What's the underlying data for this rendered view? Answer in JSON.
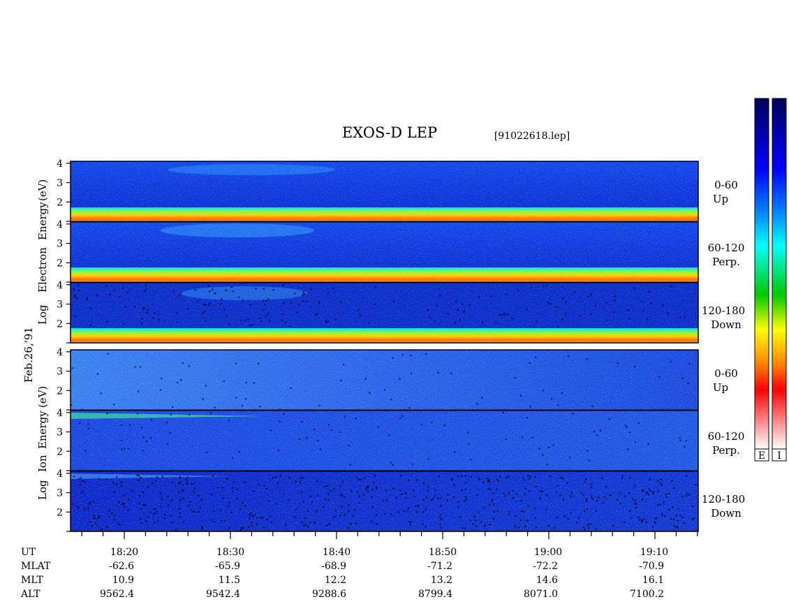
{
  "header": {
    "title": "EXOS-D LEP",
    "file": "[91022618.lep]"
  },
  "chart_data": {
    "type": "heatmap",
    "date_label": "Feb.26,'91",
    "x_tick_labels": [
      "18:20",
      "18:30",
      "18:40",
      "18:50",
      "19:00",
      "19:10"
    ],
    "groups": [
      {
        "name": "electron",
        "ylabel_lines": [
          "Log",
          "Electron",
          "Energy",
          "(eV)"
        ],
        "ylim": [
          1,
          4.1
        ],
        "ytick_labels": [
          "4",
          "3",
          "2"
        ],
        "panels": [
          {
            "pitch": "0-60",
            "direction": "Up"
          },
          {
            "pitch": "60-120",
            "direction": "Perp."
          },
          {
            "pitch": "120-180",
            "direction": "Down"
          }
        ]
      },
      {
        "name": "ion",
        "ylabel_lines": [
          "Log",
          "Ion",
          "Energy",
          "(eV)"
        ],
        "ylim": [
          1,
          4.1
        ],
        "ytick_labels": [
          "4",
          "3",
          "2"
        ],
        "panels": [
          {
            "pitch": "0-60",
            "direction": "Up"
          },
          {
            "pitch": "60-120",
            "direction": "Perp."
          },
          {
            "pitch": "120-180",
            "direction": "Down"
          }
        ]
      }
    ],
    "ephemeris": [
      {
        "label": "UT",
        "values": [
          "18:20",
          "18:30",
          "18:40",
          "18:50",
          "19:00",
          "19:10"
        ]
      },
      {
        "label": "MLAT",
        "values": [
          "-62.6",
          "-65.9",
          "-68.9",
          "-71.2",
          "-72.2",
          "-70.9"
        ]
      },
      {
        "label": "MLT",
        "values": [
          "10.9",
          "11.5",
          "12.2",
          "13.2",
          "14.6",
          "16.1"
        ]
      },
      {
        "label": "ALT",
        "values": [
          "9562.4",
          "9542.4",
          "9288.6",
          "8799.4",
          "8071.0",
          "7100.2"
        ]
      }
    ],
    "colorbars": [
      {
        "species": "electron",
        "label": "E"
      },
      {
        "species": "ion",
        "label": "I"
      }
    ],
    "colormap": [
      "#ffffff",
      "#ff0000",
      "#ff8000",
      "#ffff00",
      "#00cc00",
      "#00ffff",
      "#0060ff",
      "#0000c0",
      "#000060"
    ]
  }
}
